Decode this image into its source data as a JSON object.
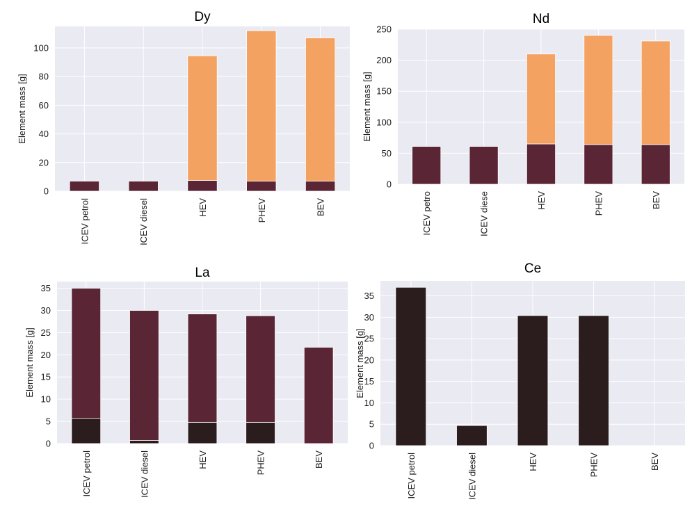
{
  "chart_data": [
    {
      "type": "bar",
      "stacked": true,
      "title": "Dy",
      "ylabel": "Element mass [g]",
      "categories": [
        "ICEV petrol",
        "ICEV diesel",
        "HEV",
        "PHEV",
        "BEV"
      ],
      "ylim": [
        0,
        115
      ],
      "yticks": [
        0,
        20,
        40,
        60,
        80,
        100
      ],
      "grid": true,
      "series": [
        {
          "color": "#5a2535",
          "values": [
            7,
            7,
            7.5,
            7,
            7
          ]
        },
        {
          "color": "#f4a262",
          "values": [
            0,
            0,
            87,
            105,
            100
          ]
        }
      ]
    },
    {
      "type": "bar",
      "stacked": true,
      "title": "Nd",
      "ylabel": "Element mass [g]",
      "categories": [
        "ICEV petro",
        "ICEV diese",
        "HEV",
        "PHEV",
        "BEV"
      ],
      "ylim": [
        0,
        250
      ],
      "yticks": [
        0,
        50,
        100,
        150,
        200,
        250
      ],
      "grid": true,
      "series": [
        {
          "color": "#5a2535",
          "values": [
            61,
            61,
            65,
            64,
            64
          ]
        },
        {
          "color": "#f4a262",
          "values": [
            0,
            0,
            145,
            176,
            167
          ]
        }
      ]
    },
    {
      "type": "bar",
      "stacked": true,
      "title": "La",
      "ylabel": "Element mass [g]",
      "categories": [
        "ICEV petrol",
        "ICEV diesel",
        "HEV",
        "PHEV",
        "BEV"
      ],
      "ylim": [
        0,
        36.5
      ],
      "yticks": [
        0,
        5,
        10,
        15,
        20,
        25,
        30,
        35
      ],
      "grid": true,
      "series": [
        {
          "color": "#2b1c1e",
          "values": [
            5.7,
            0.7,
            4.8,
            4.8,
            0
          ]
        },
        {
          "color": "#5a2535",
          "values": [
            29.3,
            29.3,
            24.4,
            24.0,
            21.7
          ]
        }
      ]
    },
    {
      "type": "bar",
      "stacked": true,
      "title": "Ce",
      "ylabel": "Element mass [g]",
      "categories": [
        "ICEV petrol",
        "ICEV diesel",
        "HEV",
        "PHEV",
        "BEV"
      ],
      "ylim": [
        0,
        38.5
      ],
      "yticks": [
        0,
        5,
        10,
        15,
        20,
        25,
        30,
        35
      ],
      "grid": true,
      "series": [
        {
          "color": "#2b1c1e",
          "values": [
            37,
            4.7,
            30.4,
            30.4,
            0
          ]
        }
      ]
    }
  ]
}
